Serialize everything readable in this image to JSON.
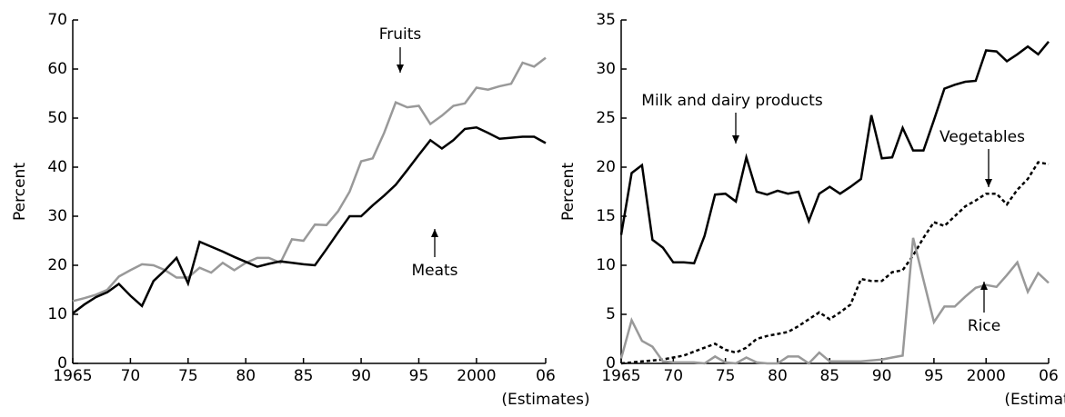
{
  "chart_data": [
    {
      "type": "line",
      "ylabel": "Percent",
      "x_note": "(Estimates)",
      "x": [
        1965,
        1966,
        1967,
        1968,
        1969,
        1970,
        1971,
        1972,
        1973,
        1974,
        1975,
        1976,
        1977,
        1978,
        1979,
        1980,
        1981,
        1982,
        1983,
        1984,
        1985,
        1986,
        1987,
        1988,
        1989,
        1990,
        1991,
        1992,
        1993,
        1994,
        1995,
        1996,
        1997,
        1998,
        1999,
        2000,
        2001,
        2002,
        2003,
        2004,
        2005,
        2006
      ],
      "xlim": [
        1965,
        2006
      ],
      "xticks": [
        1965,
        {
          "value": 1970,
          "label": "70"
        },
        {
          "value": 1975,
          "label": "75"
        },
        {
          "value": 1980,
          "label": "80"
        },
        {
          "value": 1985,
          "label": "85"
        },
        {
          "value": 1990,
          "label": "90"
        },
        {
          "value": 1995,
          "label": "95"
        },
        2000,
        {
          "value": 2006,
          "label": "06"
        }
      ],
      "ylim": [
        0,
        70
      ],
      "yticks": [
        0,
        10,
        20,
        30,
        40,
        50,
        60,
        70
      ],
      "series": [
        {
          "name": "Fruits",
          "color": "#999999",
          "values": [
            12.7,
            13.3,
            14,
            15,
            17.7,
            19,
            20.2,
            20,
            19,
            17.5,
            17.5,
            19.5,
            18.5,
            20.5,
            19,
            20.5,
            21.5,
            21.5,
            20.5,
            25.3,
            25,
            28.3,
            28.2,
            31,
            35,
            41.2,
            41.8,
            47,
            53.2,
            52.2,
            52.5,
            48.8,
            50.5,
            52.5,
            53,
            56.2,
            55.8,
            56.5,
            57,
            61.3,
            60.5,
            62.3
          ]
        },
        {
          "name": "Meats",
          "color": "#000000",
          "values": [
            10.2,
            12,
            13.5,
            14.5,
            16.2,
            13.8,
            11.7,
            16.8,
            19,
            21.5,
            16.3,
            24.8,
            23.8,
            22.8,
            21.7,
            20.7,
            19.7,
            20.3,
            20.8,
            20.5,
            20.2,
            20,
            23.3,
            26.7,
            30,
            30,
            32.2,
            34.2,
            36.4,
            39.4,
            42.5,
            45.5,
            43.8,
            45.5,
            47.8,
            48.1,
            47,
            45.8,
            46,
            46.2,
            46.2,
            44.9
          ]
        }
      ]
    },
    {
      "type": "line",
      "ylabel": "Percent",
      "x_note": "(Estimates)",
      "x": [
        1965,
        1966,
        1967,
        1968,
        1969,
        1970,
        1971,
        1972,
        1973,
        1974,
        1975,
        1976,
        1977,
        1978,
        1979,
        1980,
        1981,
        1982,
        1983,
        1984,
        1985,
        1986,
        1987,
        1988,
        1989,
        1990,
        1991,
        1992,
        1993,
        1994,
        1995,
        1996,
        1997,
        1998,
        1999,
        2000,
        2001,
        2002,
        2003,
        2004,
        2005,
        2006
      ],
      "xlim": [
        1965,
        2006
      ],
      "xticks": [
        1965,
        {
          "value": 1970,
          "label": "70"
        },
        {
          "value": 1975,
          "label": "75"
        },
        {
          "value": 1980,
          "label": "80"
        },
        {
          "value": 1985,
          "label": "85"
        },
        {
          "value": 1990,
          "label": "90"
        },
        {
          "value": 1995,
          "label": "95"
        },
        2000,
        {
          "value": 2006,
          "label": "06"
        }
      ],
      "ylim": [
        0,
        35
      ],
      "yticks": [
        0,
        5,
        10,
        15,
        20,
        25,
        30,
        35
      ],
      "series": [
        {
          "name": "Milk and dairy products",
          "color": "#000000",
          "values": [
            13.1,
            19.4,
            20.2,
            12.6,
            11.8,
            10.3,
            10.3,
            10.2,
            13,
            17.2,
            17.3,
            16.5,
            21,
            17.5,
            17.2,
            17.6,
            17.3,
            17.5,
            14.5,
            17.3,
            18,
            17.3,
            18,
            18.8,
            25.3,
            20.9,
            21,
            24,
            21.7,
            21.7,
            24.8,
            28,
            28.4,
            28.7,
            28.8,
            31.9,
            31.8,
            30.8,
            31.5,
            32.3,
            31.5,
            32.8
          ]
        },
        {
          "name": "Vegetables",
          "color": "#000000",
          "dashed": true,
          "values": [
            0,
            0.1,
            0.2,
            0.3,
            0.4,
            0.6,
            0.8,
            1.2,
            1.6,
            2,
            1.4,
            1.1,
            1.6,
            2.5,
            2.8,
            3,
            3.2,
            3.8,
            4.5,
            5.2,
            4.5,
            5.2,
            6,
            8.6,
            8.4,
            8.4,
            9.3,
            9.5,
            11,
            12.8,
            14.4,
            14,
            15,
            16,
            16.6,
            17.3,
            17.3,
            16.2,
            17.7,
            18.8,
            20.5,
            20.3
          ]
        },
        {
          "name": "Rice",
          "color": "#999999",
          "values": [
            0.5,
            4.4,
            2.3,
            1.7,
            0.2,
            0.1,
            0.1,
            0.1,
            0,
            0.7,
            0.1,
            0,
            0.6,
            0.1,
            0,
            0,
            0.7,
            0.7,
            0,
            1.1,
            0.2,
            0.2,
            0.2,
            0.2,
            0.3,
            0.4,
            0.6,
            0.8,
            12.8,
            8.5,
            4.2,
            5.8,
            5.8,
            6.8,
            7.7,
            8,
            7.8,
            9,
            10.3,
            7.3,
            9.2,
            8.2
          ]
        }
      ]
    }
  ]
}
